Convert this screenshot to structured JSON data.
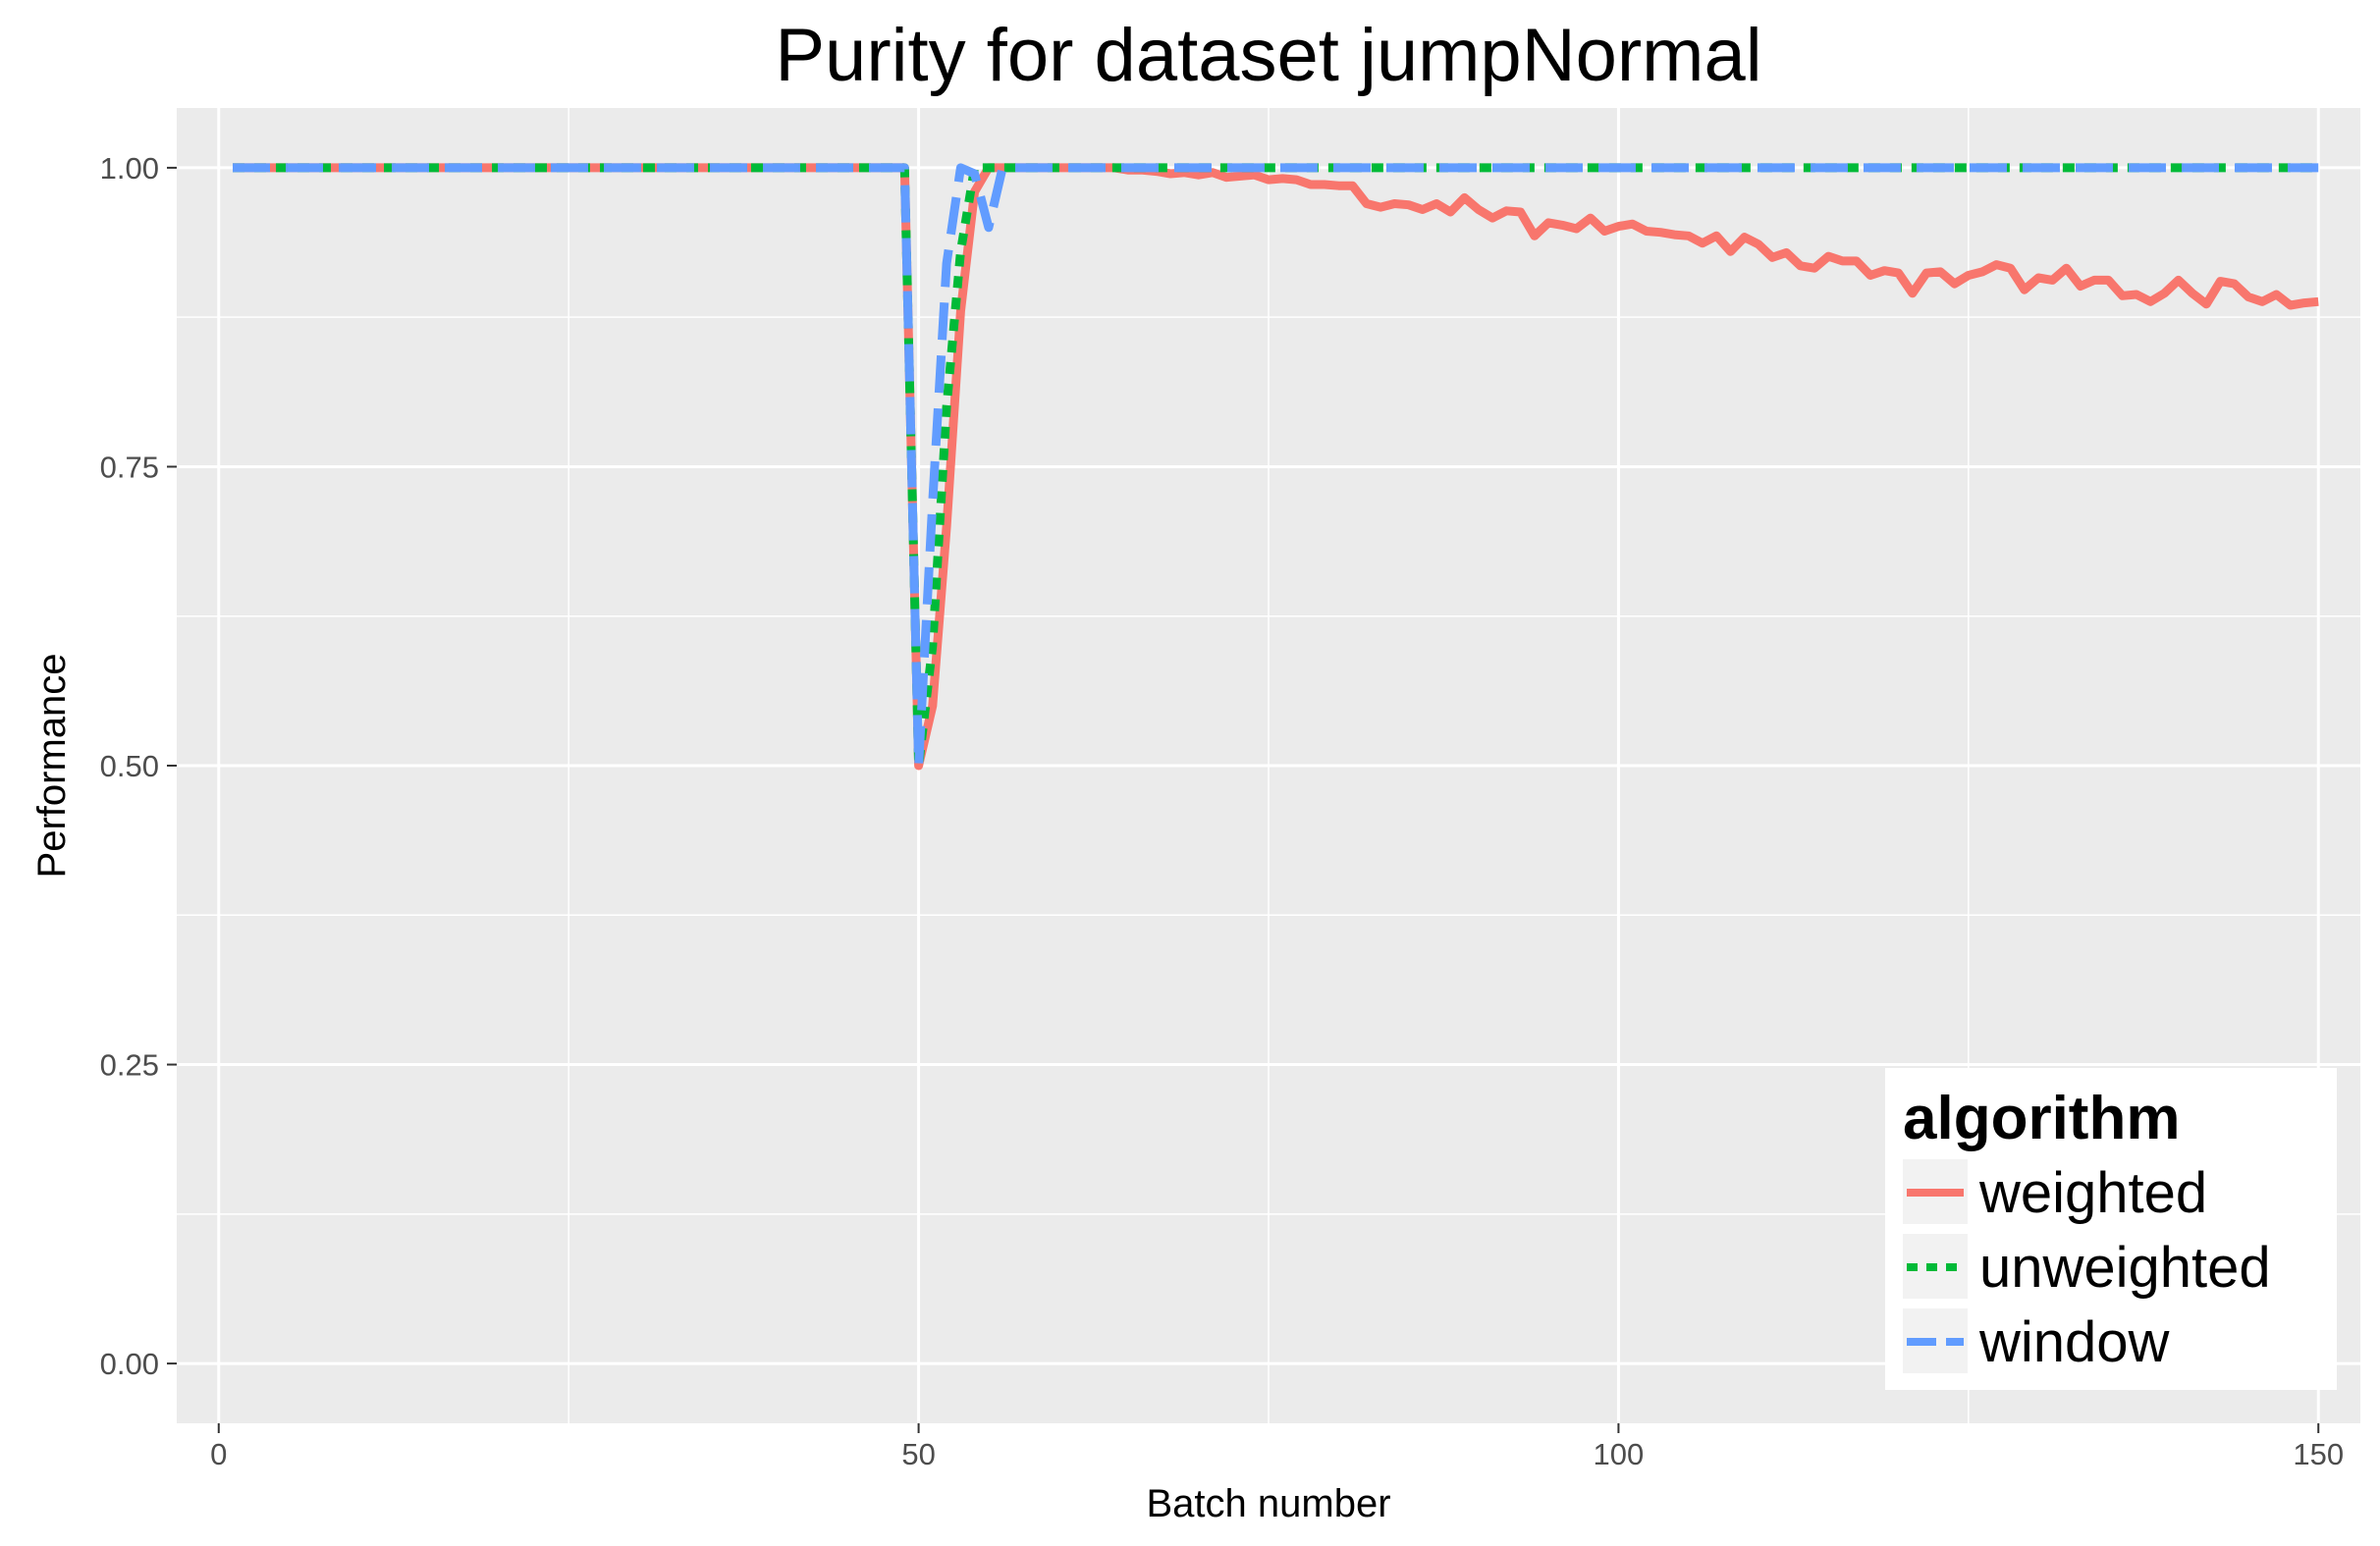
{
  "chart_data": {
    "type": "line",
    "title": "Purity for dataset jumpNormal",
    "xlabel": "Batch number",
    "ylabel": "Performance",
    "xlim": [
      -3,
      153
    ],
    "ylim": [
      -0.05,
      1.05
    ],
    "x_ticks": [
      0,
      50,
      100,
      150
    ],
    "x_tick_labels": [
      "0",
      "50",
      "100",
      "150"
    ],
    "y_ticks": [
      0,
      0.25,
      0.5,
      0.75,
      1.0
    ],
    "y_tick_labels": [
      "0.00",
      "0.25",
      "0.50",
      "0.75",
      "1.00"
    ],
    "grid": true,
    "legend": {
      "title": "algorithm",
      "position": "bottom-right"
    },
    "series": [
      {
        "name": "weighted",
        "color": "#F8766D",
        "dash": "solid",
        "points": [
          [
            1,
            1.0
          ],
          [
            2,
            1.0
          ],
          [
            3,
            1.0
          ],
          [
            4,
            1.0
          ],
          [
            5,
            1.0
          ],
          [
            6,
            1.0
          ],
          [
            7,
            1.0
          ],
          [
            8,
            1.0
          ],
          [
            9,
            1.0
          ],
          [
            10,
            1.0
          ],
          [
            11,
            1.0
          ],
          [
            12,
            1.0
          ],
          [
            13,
            1.0
          ],
          [
            14,
            1.0
          ],
          [
            15,
            1.0
          ],
          [
            16,
            1.0
          ],
          [
            17,
            1.0
          ],
          [
            18,
            1.0
          ],
          [
            19,
            1.0
          ],
          [
            20,
            1.0
          ],
          [
            21,
            1.0
          ],
          [
            22,
            1.0
          ],
          [
            23,
            1.0
          ],
          [
            24,
            1.0
          ],
          [
            25,
            1.0
          ],
          [
            26,
            1.0
          ],
          [
            27,
            1.0
          ],
          [
            28,
            1.0
          ],
          [
            29,
            1.0
          ],
          [
            30,
            1.0
          ],
          [
            31,
            1.0
          ],
          [
            32,
            1.0
          ],
          [
            33,
            1.0
          ],
          [
            34,
            1.0
          ],
          [
            35,
            1.0
          ],
          [
            36,
            1.0
          ],
          [
            37,
            1.0
          ],
          [
            38,
            1.0
          ],
          [
            39,
            1.0
          ],
          [
            40,
            1.0
          ],
          [
            41,
            1.0
          ],
          [
            42,
            1.0
          ],
          [
            43,
            1.0
          ],
          [
            44,
            1.0
          ],
          [
            45,
            1.0
          ],
          [
            46,
            1.0
          ],
          [
            47,
            1.0
          ],
          [
            48,
            1.0
          ],
          [
            49,
            1.0
          ],
          [
            50,
            0.5
          ],
          [
            51,
            0.55
          ],
          [
            52,
            0.7
          ],
          [
            53,
            0.88
          ],
          [
            54,
            0.98
          ],
          [
            55,
            1.0
          ],
          [
            56,
            1.0
          ],
          [
            57,
            1.0
          ],
          [
            58,
            1.0
          ],
          [
            59,
            1.0
          ],
          [
            60,
            1.0
          ],
          [
            61,
            1.0
          ],
          [
            62,
            1.0
          ],
          [
            63,
            1.0
          ],
          [
            64,
            1.0
          ],
          [
            65,
            0.998
          ],
          [
            66,
            0.998
          ],
          [
            67,
            0.997
          ],
          [
            68,
            0.995
          ],
          [
            69,
            0.996
          ],
          [
            70,
            0.994
          ],
          [
            71,
            0.996
          ],
          [
            72,
            0.992
          ],
          [
            73,
            0.993
          ],
          [
            74,
            0.994
          ],
          [
            75,
            0.99
          ],
          [
            76,
            0.991
          ],
          [
            77,
            0.99
          ],
          [
            78,
            0.986
          ],
          [
            79,
            0.986
          ],
          [
            80,
            0.985
          ],
          [
            81,
            0.985
          ],
          [
            82,
            0.97
          ],
          [
            83,
            0.967
          ],
          [
            84,
            0.97
          ],
          [
            85,
            0.969
          ],
          [
            86,
            0.965
          ],
          [
            87,
            0.97
          ],
          [
            88,
            0.963
          ],
          [
            89,
            0.975
          ],
          [
            90,
            0.965
          ],
          [
            91,
            0.958
          ],
          [
            92,
            0.964
          ],
          [
            93,
            0.963
          ],
          [
            94,
            0.943
          ],
          [
            95,
            0.954
          ],
          [
            96,
            0.952
          ],
          [
            97,
            0.949
          ],
          [
            98,
            0.958
          ],
          [
            99,
            0.947
          ],
          [
            100,
            0.951
          ],
          [
            101,
            0.953
          ],
          [
            102,
            0.947
          ],
          [
            103,
            0.946
          ],
          [
            104,
            0.944
          ],
          [
            105,
            0.943
          ],
          [
            106,
            0.937
          ],
          [
            107,
            0.943
          ],
          [
            108,
            0.93
          ],
          [
            109,
            0.942
          ],
          [
            110,
            0.936
          ],
          [
            111,
            0.925
          ],
          [
            112,
            0.929
          ],
          [
            113,
            0.918
          ],
          [
            114,
            0.916
          ],
          [
            115,
            0.926
          ],
          [
            116,
            0.922
          ],
          [
            117,
            0.922
          ],
          [
            118,
            0.91
          ],
          [
            119,
            0.914
          ],
          [
            120,
            0.912
          ],
          [
            121,
            0.895
          ],
          [
            122,
            0.912
          ],
          [
            123,
            0.913
          ],
          [
            124,
            0.903
          ],
          [
            125,
            0.91
          ],
          [
            126,
            0.913
          ],
          [
            127,
            0.919
          ],
          [
            128,
            0.916
          ],
          [
            129,
            0.898
          ],
          [
            130,
            0.908
          ],
          [
            131,
            0.906
          ],
          [
            132,
            0.916
          ],
          [
            133,
            0.901
          ],
          [
            134,
            0.906
          ],
          [
            135,
            0.906
          ],
          [
            136,
            0.893
          ],
          [
            137,
            0.894
          ],
          [
            138,
            0.888
          ],
          [
            139,
            0.895
          ],
          [
            140,
            0.906
          ],
          [
            141,
            0.895
          ],
          [
            142,
            0.886
          ],
          [
            143,
            0.905
          ],
          [
            144,
            0.903
          ],
          [
            145,
            0.892
          ],
          [
            146,
            0.888
          ],
          [
            147,
            0.894
          ],
          [
            148,
            0.885
          ],
          [
            149,
            0.887
          ],
          [
            150,
            0.888
          ]
        ]
      },
      {
        "name": "unweighted",
        "color": "#00BA38",
        "dash": "dotted",
        "points": [
          [
            1,
            1.0
          ],
          [
            49,
            1.0
          ],
          [
            50,
            0.5
          ],
          [
            51,
            0.6
          ],
          [
            52,
            0.8
          ],
          [
            53,
            0.93
          ],
          [
            54,
            1.0
          ],
          [
            150,
            1.0
          ]
        ]
      },
      {
        "name": "window",
        "color": "#619CFF",
        "dash": "dashed",
        "points": [
          [
            1,
            1.0
          ],
          [
            49,
            1.0
          ],
          [
            50,
            0.5
          ],
          [
            51,
            0.72
          ],
          [
            52,
            0.92
          ],
          [
            53,
            1.0
          ],
          [
            54,
            0.995
          ],
          [
            55,
            0.95
          ],
          [
            56,
            1.0
          ],
          [
            150,
            1.0
          ]
        ]
      }
    ]
  }
}
